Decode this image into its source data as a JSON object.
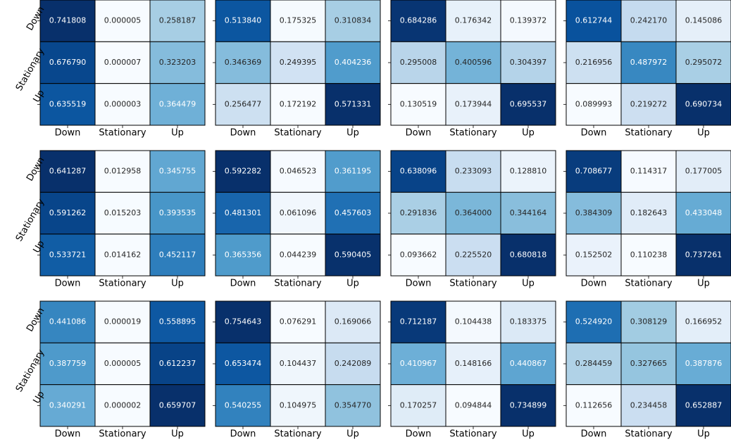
{
  "chart_data": [
    {
      "type": "heatmap",
      "colormap": "Blues",
      "categories": [
        "Down",
        "Stationary",
        "Up"
      ],
      "y_categories": [
        "Down",
        "Stationary",
        "Up"
      ],
      "values": [
        [
          0.741808,
          5e-06,
          0.258187
        ],
        [
          0.67679,
          7e-06,
          0.323203
        ],
        [
          0.635519,
          3e-06,
          0.364479
        ]
      ],
      "value_labels": [
        [
          "0.741808",
          "0.000005",
          "0.258187"
        ],
        [
          "0.676790",
          "0.000007",
          "0.323203"
        ],
        [
          "0.635519",
          "0.000003",
          "0.364479"
        ]
      ]
    },
    {
      "type": "heatmap",
      "colormap": "Blues",
      "categories": [
        "Down",
        "Stationary",
        "Up"
      ],
      "values": [
        [
          0.51384,
          0.175325,
          0.310834
        ],
        [
          0.346369,
          0.249395,
          0.404236
        ],
        [
          0.256477,
          0.172192,
          0.571331
        ]
      ],
      "value_labels": [
        [
          "0.513840",
          "0.175325",
          "0.310834"
        ],
        [
          "0.346369",
          "0.249395",
          "0.404236"
        ],
        [
          "0.256477",
          "0.172192",
          "0.571331"
        ]
      ]
    },
    {
      "type": "heatmap",
      "colormap": "Blues",
      "categories": [
        "Down",
        "Stationary",
        "Up"
      ],
      "values": [
        [
          0.684286,
          0.176342,
          0.139372
        ],
        [
          0.295008,
          0.400596,
          0.304397
        ],
        [
          0.130519,
          0.173944,
          0.695537
        ]
      ],
      "value_labels": [
        [
          "0.684286",
          "0.176342",
          "0.139372"
        ],
        [
          "0.295008",
          "0.400596",
          "0.304397"
        ],
        [
          "0.130519",
          "0.173944",
          "0.695537"
        ]
      ]
    },
    {
      "type": "heatmap",
      "colormap": "Blues",
      "categories": [
        "Down",
        "Stationary",
        "Up"
      ],
      "values": [
        [
          0.612744,
          0.24217,
          0.145086
        ],
        [
          0.216956,
          0.487972,
          0.295072
        ],
        [
          0.089993,
          0.219272,
          0.690734
        ]
      ],
      "value_labels": [
        [
          "0.612744",
          "0.242170",
          "0.145086"
        ],
        [
          "0.216956",
          "0.487972",
          "0.295072"
        ],
        [
          "0.089993",
          "0.219272",
          "0.690734"
        ]
      ]
    },
    {
      "type": "heatmap",
      "colormap": "Blues",
      "categories": [
        "Down",
        "Stationary",
        "Up"
      ],
      "y_categories": [
        "Down",
        "Stationary",
        "Up"
      ],
      "values": [
        [
          0.641287,
          0.012958,
          0.345755
        ],
        [
          0.591262,
          0.015203,
          0.393535
        ],
        [
          0.533721,
          0.014162,
          0.452117
        ]
      ],
      "value_labels": [
        [
          "0.641287",
          "0.012958",
          "0.345755"
        ],
        [
          "0.591262",
          "0.015203",
          "0.393535"
        ],
        [
          "0.533721",
          "0.014162",
          "0.452117"
        ]
      ]
    },
    {
      "type": "heatmap",
      "colormap": "Blues",
      "categories": [
        "Down",
        "Stationary",
        "Up"
      ],
      "values": [
        [
          0.592282,
          0.046523,
          0.361195
        ],
        [
          0.481301,
          0.061096,
          0.457603
        ],
        [
          0.365356,
          0.044239,
          0.590405
        ]
      ],
      "value_labels": [
        [
          "0.592282",
          "0.046523",
          "0.361195"
        ],
        [
          "0.481301",
          "0.061096",
          "0.457603"
        ],
        [
          "0.365356",
          "0.044239",
          "0.590405"
        ]
      ]
    },
    {
      "type": "heatmap",
      "colormap": "Blues",
      "categories": [
        "Down",
        "Stationary",
        "Up"
      ],
      "values": [
        [
          0.638096,
          0.233093,
          0.12881
        ],
        [
          0.291836,
          0.364,
          0.344164
        ],
        [
          0.093662,
          0.22552,
          0.680818
        ]
      ],
      "value_labels": [
        [
          "0.638096",
          "0.233093",
          "0.128810"
        ],
        [
          "0.291836",
          "0.364000",
          "0.344164"
        ],
        [
          "0.093662",
          "0.225520",
          "0.680818"
        ]
      ]
    },
    {
      "type": "heatmap",
      "colormap": "Blues",
      "categories": [
        "Down",
        "Stationary",
        "Up"
      ],
      "values": [
        [
          0.708677,
          0.114317,
          0.177005
        ],
        [
          0.384309,
          0.182643,
          0.433048
        ],
        [
          0.152502,
          0.110238,
          0.737261
        ]
      ],
      "value_labels": [
        [
          "0.708677",
          "0.114317",
          "0.177005"
        ],
        [
          "0.384309",
          "0.182643",
          "0.433048"
        ],
        [
          "0.152502",
          "0.110238",
          "0.737261"
        ]
      ]
    },
    {
      "type": "heatmap",
      "colormap": "Blues",
      "categories": [
        "Down",
        "Stationary",
        "Up"
      ],
      "y_categories": [
        "Down",
        "Stationary",
        "Up"
      ],
      "values": [
        [
          0.441086,
          1.9e-05,
          0.558895
        ],
        [
          0.387759,
          5e-06,
          0.612237
        ],
        [
          0.340291,
          2e-06,
          0.659707
        ]
      ],
      "value_labels": [
        [
          "0.441086",
          "0.000019",
          "0.558895"
        ],
        [
          "0.387759",
          "0.000005",
          "0.612237"
        ],
        [
          "0.340291",
          "0.000002",
          "0.659707"
        ]
      ]
    },
    {
      "type": "heatmap",
      "colormap": "Blues",
      "categories": [
        "Down",
        "Stationary",
        "Up"
      ],
      "values": [
        [
          0.754643,
          0.076291,
          0.169066
        ],
        [
          0.653474,
          0.104437,
          0.242089
        ],
        [
          0.540255,
          0.104975,
          0.35477
        ]
      ],
      "value_labels": [
        [
          "0.754643",
          "0.076291",
          "0.169066"
        ],
        [
          "0.653474",
          "0.104437",
          "0.242089"
        ],
        [
          "0.540255",
          "0.104975",
          "0.354770"
        ]
      ]
    },
    {
      "type": "heatmap",
      "colormap": "Blues",
      "categories": [
        "Down",
        "Stationary",
        "Up"
      ],
      "values": [
        [
          0.712187,
          0.104438,
          0.183375
        ],
        [
          0.410967,
          0.148166,
          0.440867
        ],
        [
          0.170257,
          0.094844,
          0.734899
        ]
      ],
      "value_labels": [
        [
          "0.712187",
          "0.104438",
          "0.183375"
        ],
        [
          "0.410967",
          "0.148166",
          "0.440867"
        ],
        [
          "0.170257",
          "0.094844",
          "0.734899"
        ]
      ]
    },
    {
      "type": "heatmap",
      "colormap": "Blues",
      "categories": [
        "Down",
        "Stationary",
        "Up"
      ],
      "values": [
        [
          0.52492,
          0.308129,
          0.166952
        ],
        [
          0.284459,
          0.327665,
          0.387876
        ],
        [
          0.112656,
          0.234458,
          0.652887
        ]
      ],
      "value_labels": [
        [
          "0.524920",
          "0.308129",
          "0.166952"
        ],
        [
          "0.284459",
          "0.327665",
          "0.387876"
        ],
        [
          "0.112656",
          "0.234458",
          "0.652887"
        ]
      ]
    }
  ]
}
